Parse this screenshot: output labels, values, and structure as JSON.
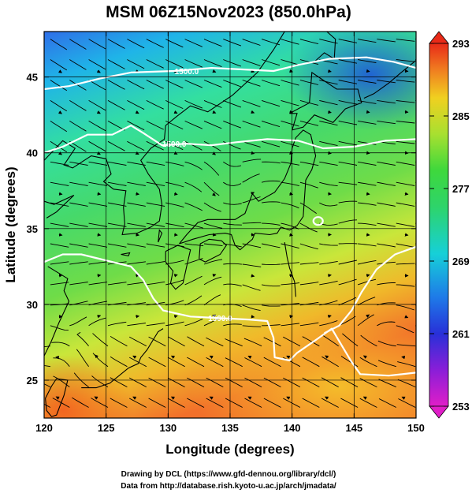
{
  "title": "MSM 06Z15Nov2023 (850.0hPa)",
  "axes": {
    "xlabel": "Longitude (degrees)",
    "ylabel": "Latitude  (degrees)",
    "xlim": [
      120,
      150
    ],
    "ylim": [
      22.5,
      48
    ],
    "xticks": [
      120,
      125,
      130,
      135,
      140,
      145,
      150
    ],
    "yticks": [
      25,
      30,
      35,
      40,
      45
    ],
    "xtick_labels": [
      "120",
      "125",
      "130",
      "135",
      "140",
      "145",
      "150"
    ],
    "ytick_labels": [
      "25",
      "30",
      "35",
      "40",
      "45"
    ],
    "grid": true
  },
  "colorbar": {
    "min": 253,
    "max": 293,
    "labels": [
      "293",
      "285",
      "277",
      "269",
      "261",
      "253"
    ],
    "label_values": [
      293,
      285,
      277,
      269,
      261,
      253
    ]
  },
  "contours": [
    {
      "label": "1500.0",
      "label_lon": 131.5,
      "label_lat": 45.4
    },
    {
      "label": "1500.0",
      "label_lon": 130.5,
      "label_lat": 40.6
    },
    {
      "label": "1500.0",
      "label_lon": 134.2,
      "label_lat": 29.1
    }
  ],
  "credits": {
    "line1": "Drawing by DCL (https://www.gfd-dennou.org/library/dcl/)",
    "line2": "Data from http://database.rish.kyoto-u.ac.jp/arch/jmadata/"
  }
}
